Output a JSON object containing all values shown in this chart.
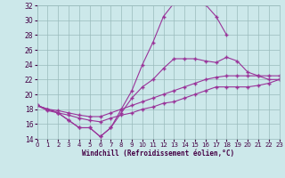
{
  "title": "",
  "xlabel": "Windchill (Refroidissement éolien,°C)",
  "xlim": [
    0,
    23
  ],
  "ylim": [
    14,
    32
  ],
  "xticks": [
    0,
    1,
    2,
    3,
    4,
    5,
    6,
    7,
    8,
    9,
    10,
    11,
    12,
    13,
    14,
    15,
    16,
    17,
    18,
    19,
    20,
    21,
    22,
    23
  ],
  "yticks": [
    14,
    16,
    18,
    20,
    22,
    24,
    26,
    28,
    30,
    32
  ],
  "background_color": "#cce8ea",
  "line_color": "#993399",
  "grid_color": "#99bbbb",
  "line1_x": [
    0,
    1,
    2,
    3,
    4,
    5,
    6,
    7,
    8,
    9,
    10,
    11,
    12,
    13,
    14,
    15,
    16,
    17,
    18
  ],
  "line1_y": [
    18.5,
    18.0,
    17.5,
    16.5,
    15.5,
    15.5,
    14.3,
    15.5,
    18.0,
    20.5,
    24.0,
    27.0,
    30.5,
    32.3,
    32.4,
    32.4,
    32.1,
    30.5,
    28.0
  ],
  "line2_x": [
    0,
    1,
    2,
    3,
    4,
    5,
    6,
    7,
    8,
    9,
    10,
    11,
    12,
    13,
    14,
    15,
    16,
    17,
    18,
    19,
    20,
    21,
    22,
    23
  ],
  "line2_y": [
    18.5,
    18.0,
    17.5,
    16.5,
    15.5,
    15.5,
    14.3,
    15.5,
    17.5,
    19.5,
    21.0,
    22.0,
    23.5,
    24.8,
    24.8,
    24.8,
    24.5,
    24.3,
    25.0,
    24.5,
    23.0,
    22.5,
    22.0,
    22.0
  ],
  "line3_x": [
    0,
    1,
    2,
    3,
    4,
    5,
    6,
    7,
    8,
    9,
    10,
    11,
    12,
    13,
    14,
    15,
    16,
    17,
    18,
    19,
    20,
    21,
    22,
    23
  ],
  "line3_y": [
    18.5,
    18.0,
    17.8,
    17.5,
    17.2,
    17.0,
    17.0,
    17.5,
    18.0,
    18.5,
    19.0,
    19.5,
    20.0,
    20.5,
    21.0,
    21.5,
    22.0,
    22.3,
    22.5,
    22.5,
    22.5,
    22.5,
    22.5,
    22.5
  ],
  "line4_x": [
    0,
    1,
    2,
    3,
    4,
    5,
    6,
    7,
    8,
    9,
    10,
    11,
    12,
    13,
    14,
    15,
    16,
    17,
    18,
    19,
    20,
    21,
    22,
    23
  ],
  "line4_y": [
    18.5,
    17.8,
    17.5,
    17.2,
    16.8,
    16.5,
    16.3,
    16.8,
    17.2,
    17.5,
    18.0,
    18.3,
    18.8,
    19.0,
    19.5,
    20.0,
    20.5,
    21.0,
    21.0,
    21.0,
    21.0,
    21.2,
    21.5,
    22.0
  ]
}
